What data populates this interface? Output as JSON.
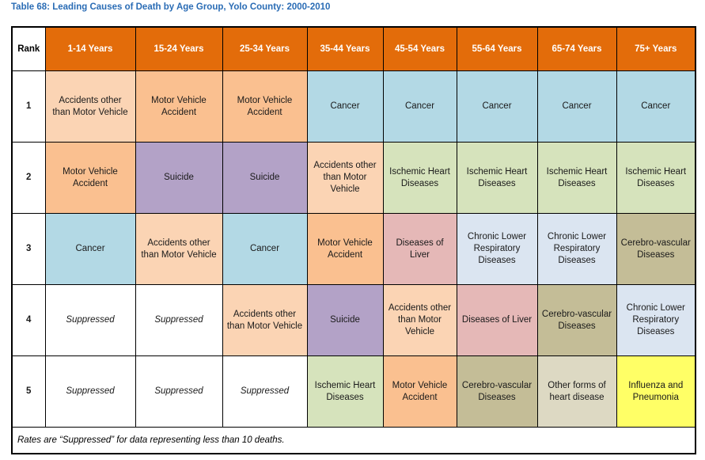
{
  "title": "Table 68: Leading Causes of Death by Age Group, Yolo County: 2000-2010",
  "footer": "Rates are “Suppressed” for data representing less than 10 deaths.",
  "colors": {
    "header_bg": "#E36C0A",
    "header_text": "#FFFFFF",
    "title_text": "#2A6CB5",
    "peach_light": "#FBD4B4",
    "orange_medium": "#FAC090",
    "blue_light": "#B3D9E5",
    "purple": "#B3A2C7",
    "green_light": "#D6E3BC",
    "rose": "#E5B8B7",
    "bluegray_light": "#DBE5F1",
    "tan": "#C4BD97",
    "beige_light": "#DDD9C3",
    "yellow": "#FFFF66",
    "white": "#FFFFFF"
  },
  "table": {
    "rank_header": "Rank",
    "columns": [
      "1-14 Years",
      "15-24 Years",
      "25-34 Years",
      "35-44 Years",
      "45-54 Years",
      "55-64 Years",
      "65-74 Years",
      "75+ Years"
    ],
    "rows": [
      {
        "rank": "1",
        "cells": [
          {
            "text": "Accidents other than Motor Vehicle",
            "color": "peach_light"
          },
          {
            "text": "Motor Vehicle Accident",
            "color": "orange_medium"
          },
          {
            "text": "Motor Vehicle Accident",
            "color": "orange_medium"
          },
          {
            "text": "Cancer",
            "color": "blue_light"
          },
          {
            "text": "Cancer",
            "color": "blue_light"
          },
          {
            "text": "Cancer",
            "color": "blue_light"
          },
          {
            "text": "Cancer",
            "color": "blue_light"
          },
          {
            "text": "Cancer",
            "color": "blue_light"
          }
        ]
      },
      {
        "rank": "2",
        "cells": [
          {
            "text": "Motor Vehicle Accident",
            "color": "orange_medium"
          },
          {
            "text": "Suicide",
            "color": "purple"
          },
          {
            "text": "Suicide",
            "color": "purple"
          },
          {
            "text": "Accidents other than Motor Vehicle",
            "color": "peach_light"
          },
          {
            "text": "Ischemic Heart Diseases",
            "color": "green_light"
          },
          {
            "text": "Ischemic Heart Diseases",
            "color": "green_light"
          },
          {
            "text": "Ischemic Heart Diseases",
            "color": "green_light"
          },
          {
            "text": "Ischemic Heart Diseases",
            "color": "green_light"
          }
        ]
      },
      {
        "rank": "3",
        "cells": [
          {
            "text": "Cancer",
            "color": "blue_light"
          },
          {
            "text": "Accidents other than Motor Vehicle",
            "color": "peach_light"
          },
          {
            "text": "Cancer",
            "color": "blue_light"
          },
          {
            "text": "Motor Vehicle Accident",
            "color": "orange_medium"
          },
          {
            "text": "Diseases of Liver",
            "color": "rose"
          },
          {
            "text": "Chronic Lower Respiratory Diseases",
            "color": "bluegray_light"
          },
          {
            "text": "Chronic Lower Respiratory Diseases",
            "color": "bluegray_light"
          },
          {
            "text": "Cerebro-vascular Diseases",
            "color": "tan"
          }
        ]
      },
      {
        "rank": "4",
        "cells": [
          {
            "text": "Suppressed",
            "color": "white",
            "italic": true
          },
          {
            "text": "Suppressed",
            "color": "white",
            "italic": true
          },
          {
            "text": "Accidents other than Motor Vehicle",
            "color": "peach_light"
          },
          {
            "text": "Suicide",
            "color": "purple"
          },
          {
            "text": "Accidents other than Motor Vehicle",
            "color": "peach_light"
          },
          {
            "text": "Diseases of Liver",
            "color": "rose"
          },
          {
            "text": "Cerebro-vascular Diseases",
            "color": "tan"
          },
          {
            "text": "Chronic Lower Respiratory Diseases",
            "color": "bluegray_light"
          }
        ]
      },
      {
        "rank": "5",
        "cells": [
          {
            "text": "Suppressed",
            "color": "white",
            "italic": true
          },
          {
            "text": "Suppressed",
            "color": "white",
            "italic": true
          },
          {
            "text": "Suppressed",
            "color": "white",
            "italic": true
          },
          {
            "text": "Ischemic Heart Diseases",
            "color": "green_light"
          },
          {
            "text": "Motor Vehicle Accident",
            "color": "orange_medium"
          },
          {
            "text": "Cerebro-vascular Diseases",
            "color": "tan"
          },
          {
            "text": "Other forms of heart disease",
            "color": "beige_light"
          },
          {
            "text": "Influenza and Pneumonia",
            "color": "yellow"
          }
        ]
      }
    ]
  }
}
